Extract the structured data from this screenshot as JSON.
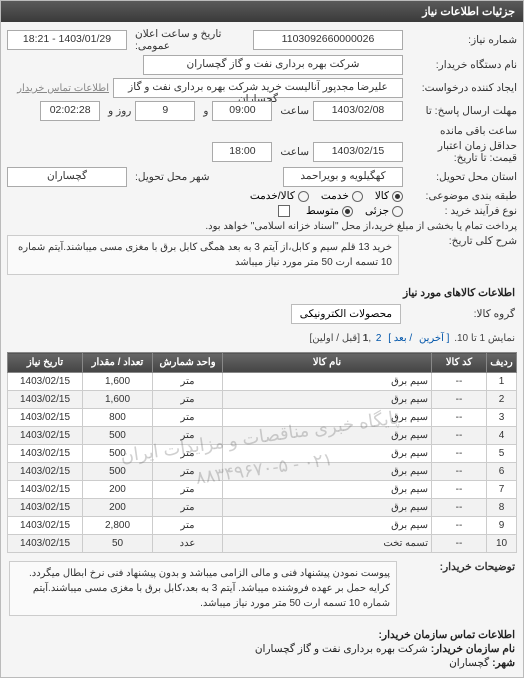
{
  "panel_title": "جزئیات اطلاعات نیاز",
  "form": {
    "req_no_label": "شماره نیاز:",
    "req_no": "1103092660000026",
    "announce_label": "تاریخ و ساعت اعلان عمومی:",
    "announce_val": "1403/01/29 - 18:21",
    "buyer_org_label": "نام دستگاه خریدار:",
    "buyer_org": "شرکت بهره برداری نفت و گاز گچساران",
    "creator_label": "ایجاد کننده درخواست:",
    "creator": "علیرضا مجدپور آنالیست خرید شرکت بهره برداری نفت و گاز گچساران",
    "contact_link": "اطلاعات تماس خریدار",
    "deadline_send_label": "مهلت ارسال پاسخ: تا",
    "deadline_send_date": "1403/02/08",
    "time_label": "ساعت",
    "deadline_send_time": "09:00",
    "remain_and": "و",
    "remain_days": "9",
    "remain_day_label": "روز و",
    "remain_time": "02:02:28",
    "remain_left_label": "ساعت باقی مانده",
    "price_deadline_label": "حداقل زمان اعتبار قیمت: تا تاریخ:",
    "price_deadline_date": "1403/02/15",
    "price_deadline_time": "18:00",
    "delivery_place_label": "استان محل تحویل:",
    "delivery_province": "کهگیلویه و بویراحمد",
    "delivery_city_label": "شهر محل تحویل:",
    "delivery_city": "گچساران",
    "budget_label": "طبقه بندی موضوعی:",
    "budget_opts": {
      "goods": "کالا",
      "service": "خدمت",
      "both": "کالا/خدمت"
    },
    "budget_selected": "goods",
    "process_label": "نوع فرآیند خرید :",
    "process_opts": {
      "small": "جزئی",
      "medium": "متوسط"
    },
    "process_selected": "medium",
    "partpay_label": "پرداخت تمام یا بخشی از مبلغ خرید،از محل \"اسناد خزانه اسلامی\" خواهد بود.",
    "history_label": "شرح کلی تاریخ:",
    "history_text": "خرید 13 قلم سیم و کابل،از آیتم 3 به بعد همگی کابل برق با مغزی مسی میباشند.آیتم شماره 10 تسمه ارت 50 متر مورد نیاز میباشد",
    "goods_info_label": "اطلاعات کالاهای مورد نیاز",
    "group_label": "گروه کالا:",
    "group_value": "محصولات الکترونیکی"
  },
  "pager": {
    "showing": "نمایش 1 تا 10.",
    "last": "[ آخرین",
    "next": "/ بعد ]",
    "p2": "2",
    "p1": "1",
    "firstprev": "[قبل / اولین]"
  },
  "table": {
    "headers": {
      "idx": "ردیف",
      "code": "کد کالا",
      "name": "نام کالا",
      "unit": "واحد شمارش",
      "qty": "تعداد / مقدار",
      "date": "تاریخ نیاز"
    },
    "rows": [
      {
        "idx": "1",
        "code": "--",
        "name": "سیم برق",
        "unit": "متر",
        "qty": "1,600",
        "date": "1403/02/15"
      },
      {
        "idx": "2",
        "code": "--",
        "name": "سیم برق",
        "unit": "متر",
        "qty": "1,600",
        "date": "1403/02/15"
      },
      {
        "idx": "3",
        "code": "--",
        "name": "سیم برق",
        "unit": "متر",
        "qty": "800",
        "date": "1403/02/15"
      },
      {
        "idx": "4",
        "code": "--",
        "name": "سیم برق",
        "unit": "متر",
        "qty": "500",
        "date": "1403/02/15"
      },
      {
        "idx": "5",
        "code": "--",
        "name": "سیم برق",
        "unit": "متر",
        "qty": "500",
        "date": "1403/02/15"
      },
      {
        "idx": "6",
        "code": "--",
        "name": "سیم برق",
        "unit": "متر",
        "qty": "500",
        "date": "1403/02/15"
      },
      {
        "idx": "7",
        "code": "--",
        "name": "سیم برق",
        "unit": "متر",
        "qty": "200",
        "date": "1403/02/15"
      },
      {
        "idx": "8",
        "code": "--",
        "name": "سیم برق",
        "unit": "متر",
        "qty": "200",
        "date": "1403/02/15"
      },
      {
        "idx": "9",
        "code": "--",
        "name": "سیم برق",
        "unit": "متر",
        "qty": "2,800",
        "date": "1403/02/15"
      },
      {
        "idx": "10",
        "code": "--",
        "name": "تسمه تخت",
        "unit": "عدد",
        "qty": "50",
        "date": "1403/02/15"
      }
    ]
  },
  "watermark": {
    "line1": "پایگاه خبری مناقصات و مزایدات ایران",
    "line2": "۰۲۱ - ۸۸۳۴۹۶۷۰-۵"
  },
  "buyer_desc": {
    "label": "توضیحات خریدار:",
    "text": "پیوست نمودن پیشنهاد فنی و مالی الزامی میباشد و بدون پیشنهاد فنی نرخ ابطال میگردد. کرایه حمل بر عهده فروشنده میباشد. آیتم 3 به بعد،کابل برق با مغزی مسی میباشند.آیتم شماره 10 تسمه ارت 50 متر مورد نیاز میباشد."
  },
  "footer": {
    "title": "اطلاعات تماس سازمان خریدار:",
    "org_label": "نام سازمان خریدار:",
    "org_val": "شرکت بهره برداری نفت و گاز گچساران",
    "city_label": "شهر:",
    "city_val": "گچساران"
  }
}
